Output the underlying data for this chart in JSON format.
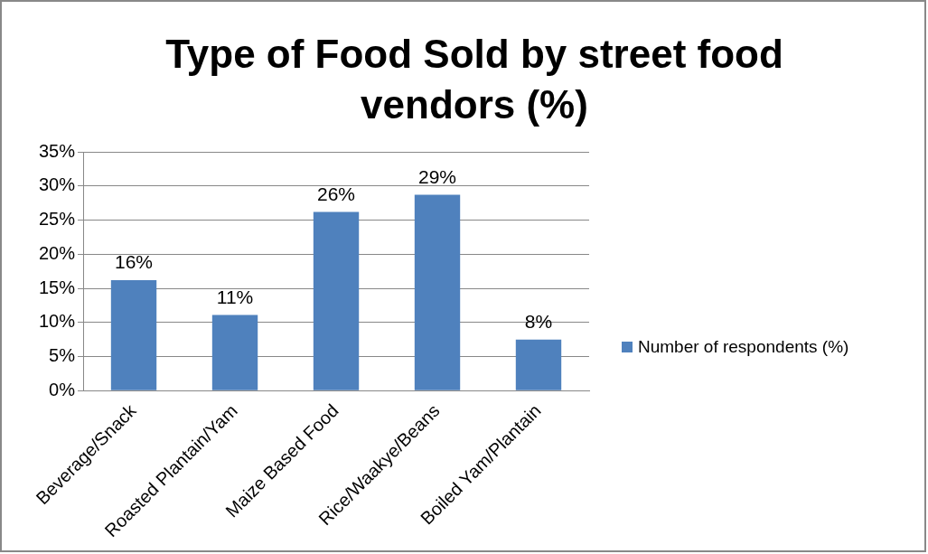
{
  "chart_data": {
    "type": "bar",
    "title": "Type of Food Sold by street food vendors (%)",
    "categories": [
      "Beverage/Snack",
      "Roasted Plantain/Yam",
      "Maize Based Food",
      "Rice/Waakye/Beans",
      "Boiled Yam/Plantain"
    ],
    "series": [
      {
        "name": "Number of respondents (%)",
        "color": "#4f81bd",
        "values": [
          16.2,
          11.1,
          26.2,
          28.7,
          7.5
        ],
        "value_labels": [
          "16%",
          "11%",
          "26%",
          "29%",
          "8%"
        ]
      }
    ],
    "ylim": [
      0,
      35
    ],
    "yticks": [
      {
        "value": 0,
        "label": "0%"
      },
      {
        "value": 5,
        "label": "5%"
      },
      {
        "value": 10,
        "label": "10%"
      },
      {
        "value": 15,
        "label": "15%"
      },
      {
        "value": 20,
        "label": "20%"
      },
      {
        "value": 25,
        "label": "25%"
      },
      {
        "value": 30,
        "label": "30%"
      },
      {
        "value": 35,
        "label": "35%"
      }
    ],
    "grid": "y",
    "legend": "right"
  }
}
